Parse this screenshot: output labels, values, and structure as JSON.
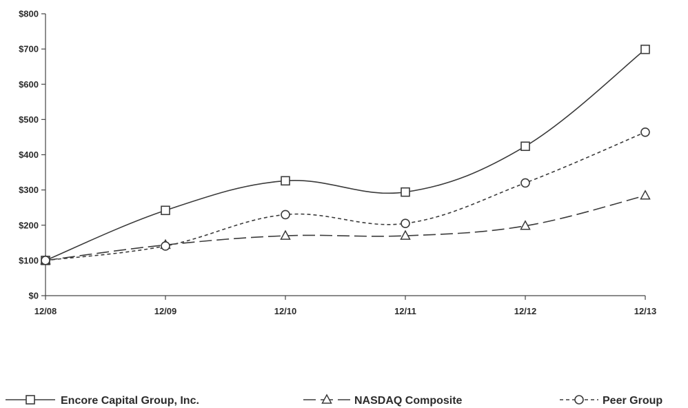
{
  "chart_data": {
    "type": "line",
    "categories": [
      "12/08",
      "12/09",
      "12/10",
      "12/11",
      "12/12",
      "12/13"
    ],
    "ylim": [
      0,
      800
    ],
    "yticks": [
      0,
      100,
      200,
      300,
      400,
      500,
      600,
      700,
      800
    ],
    "ytick_labels": [
      "$0",
      "$100",
      "$200",
      "$300",
      "$400",
      "$500",
      "$600",
      "$700",
      "$800"
    ],
    "grid": false,
    "legend_position": "bottom",
    "series": [
      {
        "name": "Encore Capital Group, Inc.",
        "marker": "square",
        "line_style": "solid",
        "values": [
          100,
          242,
          326,
          294,
          424,
          699
        ]
      },
      {
        "name": "NASDAQ Composite",
        "marker": "triangle",
        "line_style": "long-dash",
        "values": [
          100,
          144,
          170,
          170,
          198,
          284
        ]
      },
      {
        "name": "Peer Group",
        "marker": "circle",
        "line_style": "short-dash",
        "values": [
          100,
          141,
          230,
          205,
          320,
          464
        ]
      }
    ],
    "colors": {
      "line": "#3a3a3a",
      "axis": "#444444",
      "text": "#2b2b2b"
    }
  }
}
